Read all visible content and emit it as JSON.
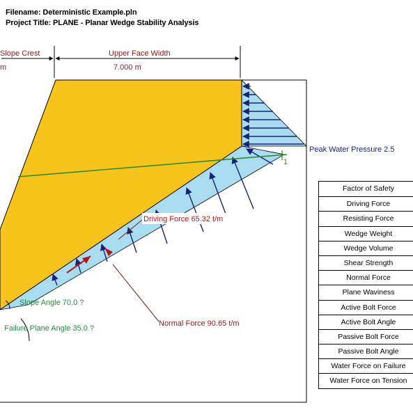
{
  "header": {
    "filename": "Filename: Deterministic Example.pln",
    "project_title": "Project Title: PLANE - Planar Wedge Stability Analysis"
  },
  "dimensions": {
    "slope_crest_label": "Slope Crest",
    "slope_crest_value": "m",
    "upper_face_label": "Upper Face Width",
    "upper_face_value": "7.000 m"
  },
  "annotations": {
    "peak_water": "Peak Water Pressure 2.5",
    "driving_force": "Driving Force 65.32 t/m",
    "normal_force": "Normal Force 90.65 t/m",
    "slope_angle": "Slope Angle 70.0 ?",
    "failure_plane_angle": "Failure Plane Angle 35.0 ?",
    "tension_marker": "1"
  },
  "results_table": {
    "rows": [
      "Factor of Safety",
      "Driving Force",
      "Resisting Force",
      "Wedge Weight",
      "Wedge Volume",
      "Shear Strength",
      "Normal Force",
      "Plane Waviness",
      "Active Bolt Force",
      "Active Bolt Angle",
      "Passive Bolt Force",
      "Passive Bolt Angle",
      "Water Force on Failure",
      "Water Force on Tension"
    ]
  },
  "colors": {
    "wedge": "#f7c31d",
    "water": "#a9dcf0",
    "arrow": "#1a1f7a",
    "dim_text": "#8b1a1a",
    "angle_text": "#1f8a43",
    "tension_line": "#2e8b2e"
  }
}
